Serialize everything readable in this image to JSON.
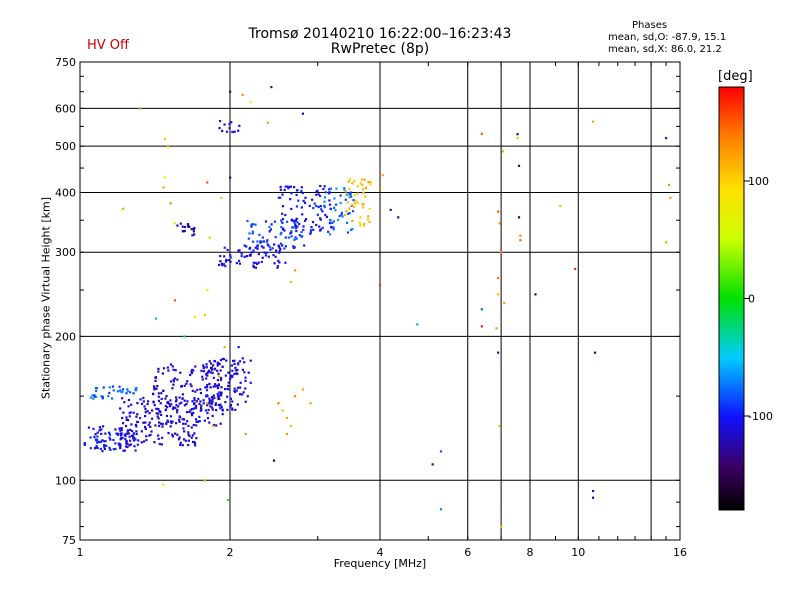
{
  "header": {
    "title": "Tromsø 20140210 16:22:00–16:23:43",
    "subtitle": "RwPretec (8p)",
    "status": "HV Off",
    "status_color": "#cc0000"
  },
  "phases": {
    "heading": "Phases",
    "o_line": "mean, sd,O:  -87.9, 15.1",
    "x_line": "mean, sd,X:   86.0, 21.2"
  },
  "colorbar": {
    "unit": "[deg]",
    "range": [
      -180,
      180
    ],
    "ticks": [
      100,
      0,
      -100
    ]
  },
  "chart_data": {
    "type": "scatter",
    "title": "Tromsø 20140210 16:22:00–16:23:43",
    "subtitle": "RwPretec (8p)",
    "xlabel": "Frequency [MHz]",
    "ylabel": "Stationary phase Virtual Height [km]",
    "xscale": "log",
    "yscale": "log",
    "xlim": [
      1,
      16
    ],
    "ylim": [
      75,
      750
    ],
    "x_ticks": [
      1,
      2,
      4,
      6,
      8,
      10,
      16
    ],
    "y_ticks": [
      75,
      100,
      200,
      300,
      400,
      500,
      600,
      750
    ],
    "grid_x": [
      2,
      4,
      6,
      7,
      8,
      10,
      14
    ],
    "grid_y": [
      100,
      200,
      300,
      400,
      500,
      600
    ],
    "color_encoding": "phase [deg]",
    "clusters": [
      {
        "x_range": [
          1.02,
          1.3
        ],
        "y_range": [
          115,
          130
        ],
        "phase": -105,
        "count": 90
      },
      {
        "x_range": [
          1.05,
          1.3
        ],
        "y_range": [
          148,
          158
        ],
        "phase": -78,
        "count": 35
      },
      {
        "x_range": [
          1.2,
          1.75
        ],
        "y_range": [
          118,
          150
        ],
        "phase": -112,
        "count": 160
      },
      {
        "x_range": [
          1.4,
          1.95
        ],
        "y_range": [
          130,
          175
        ],
        "phase": -115,
        "count": 150
      },
      {
        "x_range": [
          1.75,
          2.15
        ],
        "y_range": [
          140,
          180
        ],
        "phase": -110,
        "count": 120
      },
      {
        "x_range": [
          1.55,
          1.7
        ],
        "y_range": [
          325,
          345
        ],
        "phase": -118,
        "count": 18
      },
      {
        "x_range": [
          1.9,
          2.1
        ],
        "y_range": [
          535,
          565
        ],
        "phase": -112,
        "count": 12
      },
      {
        "x_range": [
          1.9,
          2.6
        ],
        "y_range": [
          278,
          312
        ],
        "phase": -108,
        "count": 70
      },
      {
        "x_range": [
          2.15,
          2.9
        ],
        "y_range": [
          305,
          350
        ],
        "phase": -90,
        "count": 70
      },
      {
        "x_range": [
          2.5,
          3.2
        ],
        "y_range": [
          330,
          415
        ],
        "phase": -105,
        "count": 90
      },
      {
        "x_range": [
          3.05,
          3.55
        ],
        "y_range": [
          320,
          410
        ],
        "phase": -75,
        "count": 45
      },
      {
        "x_range": [
          3.4,
          3.85
        ],
        "y_range": [
          340,
          430
        ],
        "phase": 110,
        "count": 45
      }
    ],
    "points": [
      {
        "x": 1.32,
        "y": 600,
        "phase": 20
      },
      {
        "x": 1.22,
        "y": 370,
        "phase": 120
      },
      {
        "x": 1.48,
        "y": 518,
        "phase": 110
      },
      {
        "x": 1.5,
        "y": 498,
        "phase": 100
      },
      {
        "x": 1.48,
        "y": 430,
        "phase": 80
      },
      {
        "x": 1.47,
        "y": 410,
        "phase": 120
      },
      {
        "x": 1.52,
        "y": 380,
        "phase": 130
      },
      {
        "x": 1.62,
        "y": 200,
        "phase": -20
      },
      {
        "x": 1.55,
        "y": 345,
        "phase": 80
      },
      {
        "x": 1.42,
        "y": 218,
        "phase": -60
      },
      {
        "x": 1.55,
        "y": 238,
        "phase": 150
      },
      {
        "x": 1.78,
        "y": 222,
        "phase": 110
      },
      {
        "x": 1.8,
        "y": 250,
        "phase": 60
      },
      {
        "x": 1.7,
        "y": 220,
        "phase": 70
      },
      {
        "x": 1.82,
        "y": 322,
        "phase": 110
      },
      {
        "x": 1.8,
        "y": 420,
        "phase": 150
      },
      {
        "x": 1.92,
        "y": 390,
        "phase": 40
      },
      {
        "x": 2.0,
        "y": 430,
        "phase": -130
      },
      {
        "x": 2.0,
        "y": 650,
        "phase": -140
      },
      {
        "x": 2.12,
        "y": 640,
        "phase": 130
      },
      {
        "x": 2.2,
        "y": 618,
        "phase": 60
      },
      {
        "x": 2.38,
        "y": 560,
        "phase": 130
      },
      {
        "x": 2.42,
        "y": 665,
        "phase": -110
      },
      {
        "x": 2.8,
        "y": 585,
        "phase": -130
      },
      {
        "x": 2.7,
        "y": 275,
        "phase": 130
      },
      {
        "x": 2.65,
        "y": 260,
        "phase": 110
      },
      {
        "x": 2.08,
        "y": 190,
        "phase": -100
      },
      {
        "x": 2.12,
        "y": 180,
        "phase": -110
      },
      {
        "x": 2.2,
        "y": 178,
        "phase": -110
      },
      {
        "x": 2.05,
        "y": 172,
        "phase": -110
      },
      {
        "x": 2.18,
        "y": 168,
        "phase": -110
      },
      {
        "x": 2.1,
        "y": 160,
        "phase": -110
      },
      {
        "x": 2.2,
        "y": 160,
        "phase": -110
      },
      {
        "x": 2.17,
        "y": 150,
        "phase": -110
      },
      {
        "x": 2.45,
        "y": 110,
        "phase": -150
      },
      {
        "x": 2.5,
        "y": 145,
        "phase": 140
      },
      {
        "x": 2.55,
        "y": 140,
        "phase": 110
      },
      {
        "x": 2.6,
        "y": 135,
        "phase": 120
      },
      {
        "x": 2.65,
        "y": 130,
        "phase": 110
      },
      {
        "x": 2.6,
        "y": 125,
        "phase": 130
      },
      {
        "x": 2.7,
        "y": 150,
        "phase": 140
      },
      {
        "x": 2.8,
        "y": 155,
        "phase": 120
      },
      {
        "x": 2.9,
        "y": 145,
        "phase": 120
      },
      {
        "x": 2.15,
        "y": 125,
        "phase": 130
      },
      {
        "x": 1.85,
        "y": 130,
        "phase": 130
      },
      {
        "x": 1.8,
        "y": 145,
        "phase": 120
      },
      {
        "x": 1.9,
        "y": 165,
        "phase": 120
      },
      {
        "x": 1.95,
        "y": 190,
        "phase": 120
      },
      {
        "x": 1.78,
        "y": 100,
        "phase": 120
      },
      {
        "x": 1.47,
        "y": 98,
        "phase": 80
      },
      {
        "x": 1.98,
        "y": 91,
        "phase": 10
      },
      {
        "x": 4.0,
        "y": 256,
        "phase": 160
      },
      {
        "x": 4.0,
        "y": 408,
        "phase": 140
      },
      {
        "x": 4.05,
        "y": 435,
        "phase": 120
      },
      {
        "x": 4.2,
        "y": 368,
        "phase": -110
      },
      {
        "x": 4.35,
        "y": 355,
        "phase": -130
      },
      {
        "x": 4.75,
        "y": 212,
        "phase": -60
      },
      {
        "x": 5.1,
        "y": 108,
        "phase": -120
      },
      {
        "x": 5.3,
        "y": 115,
        "phase": -80
      },
      {
        "x": 5.3,
        "y": 87,
        "phase": -70
      },
      {
        "x": 6.4,
        "y": 531,
        "phase": 150
      },
      {
        "x": 6.4,
        "y": 228,
        "phase": -80
      },
      {
        "x": 6.4,
        "y": 210,
        "phase": 170
      },
      {
        "x": 6.9,
        "y": 365,
        "phase": 150
      },
      {
        "x": 6.95,
        "y": 345,
        "phase": 130
      },
      {
        "x": 6.9,
        "y": 265,
        "phase": 140
      },
      {
        "x": 6.9,
        "y": 245,
        "phase": 110
      },
      {
        "x": 6.85,
        "y": 208,
        "phase": 130
      },
      {
        "x": 6.9,
        "y": 185,
        "phase": -130
      },
      {
        "x": 6.95,
        "y": 130,
        "phase": 30
      },
      {
        "x": 7.05,
        "y": 488,
        "phase": 120
      },
      {
        "x": 7.1,
        "y": 235,
        "phase": 120
      },
      {
        "x": 7.0,
        "y": 80,
        "phase": 110
      },
      {
        "x": 7.0,
        "y": 300,
        "phase": 130
      },
      {
        "x": 7.55,
        "y": 530,
        "phase": -130
      },
      {
        "x": 7.55,
        "y": 520,
        "phase": 110
      },
      {
        "x": 7.6,
        "y": 455,
        "phase": -130
      },
      {
        "x": 7.6,
        "y": 355,
        "phase": -150
      },
      {
        "x": 7.65,
        "y": 325,
        "phase": 130
      },
      {
        "x": 7.65,
        "y": 318,
        "phase": 150
      },
      {
        "x": 8.2,
        "y": 245,
        "phase": -140
      },
      {
        "x": 9.2,
        "y": 375,
        "phase": 110
      },
      {
        "x": 9.85,
        "y": 277,
        "phase": 160
      },
      {
        "x": 10.7,
        "y": 563,
        "phase": 120
      },
      {
        "x": 10.8,
        "y": 185,
        "phase": -130
      },
      {
        "x": 10.7,
        "y": 95,
        "phase": -110
      },
      {
        "x": 10.7,
        "y": 92,
        "phase": -130
      },
      {
        "x": 15.0,
        "y": 520,
        "phase": -100
      },
      {
        "x": 15.2,
        "y": 415,
        "phase": 130
      },
      {
        "x": 15.3,
        "y": 390,
        "phase": 120
      },
      {
        "x": 15.0,
        "y": 315,
        "phase": 120
      }
    ]
  }
}
